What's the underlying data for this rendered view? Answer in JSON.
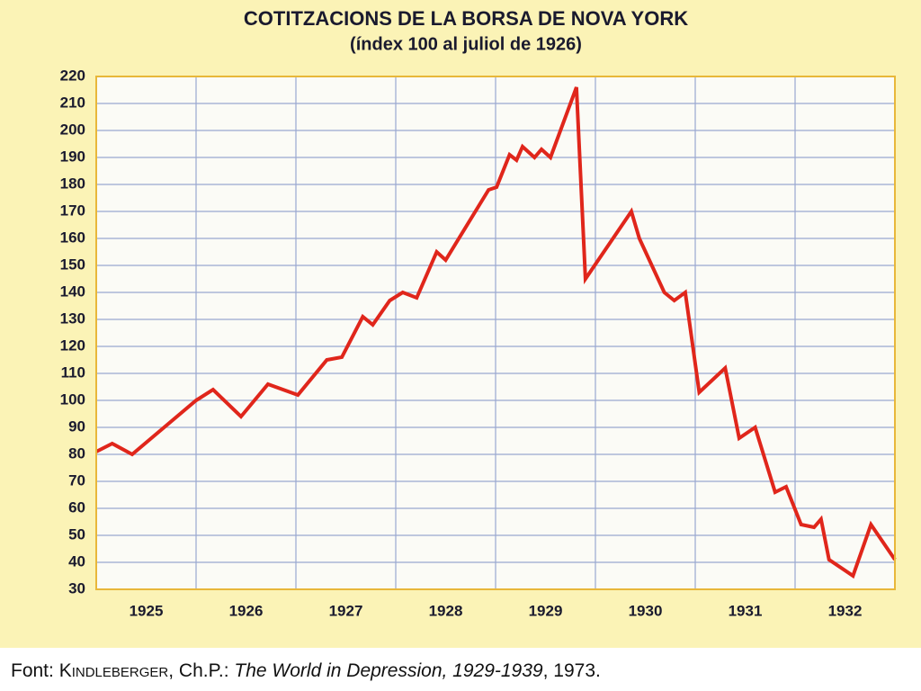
{
  "chart_data": {
    "type": "line",
    "title": "COTITZACIONS DE LA BORSA DE NOVA YORK",
    "subtitle": "(índex 100 al juliol de 1926)",
    "x": [
      1925.0,
      1925.16,
      1925.36,
      1926.0,
      1926.17,
      1926.45,
      1926.72,
      1927.02,
      1927.31,
      1927.46,
      1927.67,
      1927.77,
      1927.94,
      1928.07,
      1928.21,
      1928.41,
      1928.5,
      1928.93,
      1929.01,
      1929.14,
      1929.21,
      1929.27,
      1929.39,
      1929.46,
      1929.55,
      1929.81,
      1929.9,
      1930.36,
      1930.44,
      1930.69,
      1930.79,
      1930.9,
      1931.04,
      1931.3,
      1931.44,
      1931.6,
      1931.8,
      1931.91,
      1932.06,
      1932.19,
      1932.26,
      1932.34,
      1932.58,
      1932.76,
      1933.0
    ],
    "values": [
      81,
      84,
      80,
      100,
      104,
      94,
      106,
      102,
      115,
      116,
      131,
      128,
      137,
      140,
      138,
      155,
      152,
      178,
      179,
      191,
      189,
      194,
      190,
      193,
      190,
      216,
      145,
      170,
      160,
      140,
      137,
      140,
      103,
      112,
      86,
      90,
      66,
      68,
      54,
      53,
      56,
      41,
      35,
      54,
      41
    ],
    "color": "#e0261b",
    "xlim": [
      1925,
      1933
    ],
    "xticks": [
      {
        "value": 1925.5,
        "label": "1925"
      },
      {
        "value": 1926.5,
        "label": "1926"
      },
      {
        "value": 1927.5,
        "label": "1927"
      },
      {
        "value": 1928.5,
        "label": "1928"
      },
      {
        "value": 1929.5,
        "label": "1929"
      },
      {
        "value": 1930.5,
        "label": "1930"
      },
      {
        "value": 1931.5,
        "label": "1931"
      },
      {
        "value": 1932.5,
        "label": "1932"
      }
    ],
    "ylim": [
      30,
      220
    ],
    "yticks": [
      30,
      40,
      50,
      60,
      70,
      80,
      90,
      100,
      110,
      120,
      130,
      140,
      150,
      160,
      170,
      180,
      190,
      200,
      210,
      220
    ],
    "grid": true
  },
  "source": {
    "prefix": "Font: ",
    "author": "Kindleberger",
    "author_rest": ", Ch.P.: ",
    "work": "The World in Depression, 1929-1939",
    "year": ", 1973."
  }
}
